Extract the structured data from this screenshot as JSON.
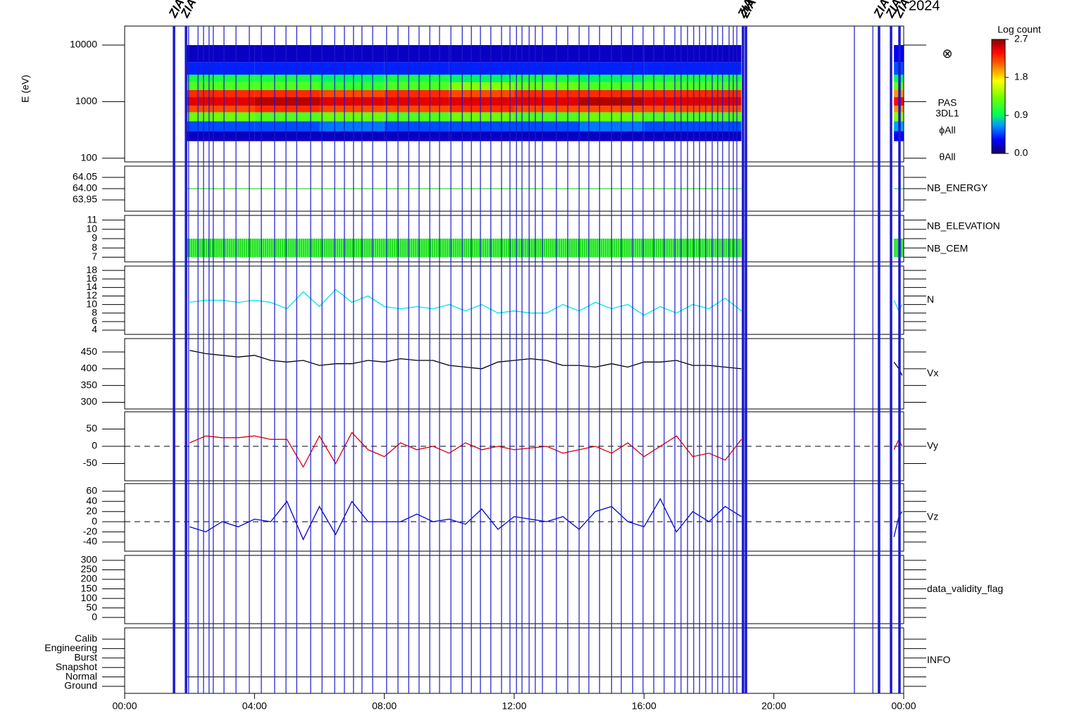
{
  "date": "2024",
  "markers": {
    "label": "ZIAC",
    "thick": [
      1.52,
      1.89,
      19.05,
      19.14,
      23.24,
      23.61,
      23.87
    ],
    "thin": [
      1.97,
      2.26,
      2.43,
      2.6,
      2.73,
      3.06,
      3.43,
      3.84,
      4.21,
      4.62,
      4.97,
      5.3,
      5.73,
      6.08,
      6.47,
      6.77,
      7.05,
      7.31,
      7.64,
      8.07,
      8.42,
      8.75,
      9.07,
      9.4,
      9.7,
      10.05,
      10.4,
      10.68,
      10.96,
      11.28,
      11.61,
      11.87,
      12.07,
      12.24,
      12.46,
      12.65,
      12.87,
      13.3,
      13.65,
      14.0,
      14.3,
      14.63,
      15.0,
      15.3,
      15.65,
      15.97,
      16.3,
      16.62,
      16.95,
      17.14,
      17.34,
      17.53,
      17.71,
      17.9,
      18.1,
      18.27,
      18.42,
      18.62,
      18.75,
      18.86,
      22.48,
      23.05
    ]
  },
  "chart_data": [
    {
      "type": "spectrogram",
      "y_label": "E (eV)",
      "log": true,
      "ylim": [
        86,
        21700
      ],
      "yticks": [
        10000,
        1000,
        100
      ],
      "symbol": "⊗",
      "right_labels": [
        {
          "text": "PAS",
          "color": "#000000"
        },
        {
          "text": "3DL1",
          "color": "#000000"
        },
        {
          "text": "ϕAll",
          "color": "#000000"
        },
        {
          "text": "θAll",
          "color": "#000000"
        }
      ],
      "energy_edges": [
        200,
        300,
        450,
        650,
        850,
        1200,
        1600,
        2200,
        3000,
        5000,
        10000
      ],
      "colorbar": {
        "label": "Log count",
        "lim": [
          0,
          2.7
        ],
        "ticks": [
          {
            "value": 0,
            "label": "0.0"
          },
          {
            "value": 0.9,
            "label": "0.9"
          },
          {
            "value": 1.8,
            "label": "1.8"
          },
          {
            "value": 2.7,
            "label": "2.7"
          }
        ]
      },
      "blocks": [
        {
          "t0": 1.9,
          "t1": 4,
          "values": [
            0.2,
            0.5,
            1.3,
            2.2,
            2.5,
            2.3,
            1.2,
            1.0,
            0.4,
            0.2
          ]
        },
        {
          "t0": 4,
          "t1": 6,
          "values": [
            0.2,
            0.5,
            1.2,
            2.3,
            2.6,
            2.3,
            1.2,
            1.0,
            0.4,
            0.2
          ]
        },
        {
          "t0": 6,
          "t1": 8,
          "values": [
            0.2,
            0.6,
            1.3,
            2.2,
            2.5,
            2.2,
            1.1,
            0.9,
            0.4,
            0.2
          ]
        },
        {
          "t0": 8,
          "t1": 10,
          "values": [
            0.2,
            0.5,
            1.2,
            2.2,
            2.5,
            2.3,
            1.2,
            1.0,
            0.4,
            0.2
          ]
        },
        {
          "t0": 10,
          "t1": 12,
          "values": [
            0.2,
            0.5,
            1.3,
            2.3,
            2.5,
            2.2,
            1.4,
            0.9,
            0.4,
            0.2
          ]
        },
        {
          "t0": 12,
          "t1": 14,
          "values": [
            0.2,
            0.5,
            1.2,
            2.2,
            2.5,
            2.3,
            1.3,
            1.0,
            0.4,
            0.2
          ]
        },
        {
          "t0": 14,
          "t1": 16,
          "values": [
            0.2,
            0.6,
            1.3,
            2.2,
            2.6,
            2.3,
            1.2,
            0.9,
            0.4,
            0.2
          ]
        },
        {
          "t0": 16,
          "t1": 19.0,
          "values": [
            0.2,
            0.5,
            1.2,
            2.2,
            2.5,
            2.3,
            1.2,
            1.0,
            0.4,
            0.2
          ]
        },
        {
          "t0": 23.7,
          "t1": 24,
          "values": [
            0.3,
            0.7,
            1.4,
            2.0,
            2.4,
            2.0,
            1.3,
            0.9,
            0.5,
            0.3
          ]
        }
      ]
    },
    {
      "type": "level",
      "ylim": [
        63.9,
        64.1
      ],
      "yticks": [
        {
          "value": 64.05,
          "label": "64.05"
        },
        {
          "value": 64.0,
          "label": "64.00"
        },
        {
          "value": 63.95,
          "label": "63.95"
        }
      ],
      "right_labels": [
        {
          "text": "NB_ENERGY",
          "color": "#00cc00"
        }
      ],
      "color": "#00cc00",
      "value": 64.0,
      "segments": [
        [
          1.9,
          19.0
        ],
        [
          23.7,
          24
        ]
      ]
    },
    {
      "type": "band",
      "ylim": [
        6.5,
        11.5
      ],
      "yticks": [
        11,
        10,
        9,
        8,
        7
      ],
      "right_labels": [
        {
          "text": "NB_ELEVATION",
          "color": "#00cc00"
        },
        {
          "text": "NB_CEM",
          "color": "#0000cc"
        }
      ],
      "color": "#22dd22",
      "range": [
        7,
        9
      ],
      "segments": [
        [
          1.9,
          19.0
        ],
        [
          23.7,
          24
        ]
      ]
    },
    {
      "type": "line",
      "ylim": [
        3,
        19
      ],
      "yticks": [
        18,
        16,
        14,
        12,
        10,
        8,
        6,
        4
      ],
      "right_labels": [
        {
          "text": "N",
          "color": "#00e5ee"
        }
      ],
      "x": [
        2,
        2.5,
        3,
        3.5,
        4,
        4.5,
        5,
        5.5,
        6,
        6.5,
        7,
        7.5,
        8,
        8.5,
        9,
        9.5,
        10,
        10.5,
        11,
        11.5,
        12,
        12.5,
        13,
        13.5,
        14,
        14.5,
        15,
        15.5,
        16,
        16.5,
        17,
        17.5,
        18,
        18.5,
        19,
        21,
        23.7,
        23.85,
        23.95
      ],
      "series": [
        {
          "name": "N",
          "color": "#00e5ee",
          "values": [
            10.5,
            11,
            11,
            10.5,
            11,
            10.5,
            9,
            13,
            9.5,
            13.5,
            10.5,
            12,
            9.5,
            9,
            9.5,
            9,
            10,
            8.5,
            10,
            8,
            8.5,
            8,
            8,
            10,
            8.5,
            10.5,
            9,
            10,
            7.5,
            9.5,
            8,
            10,
            9,
            11.5,
            8.5,
            null,
            11,
            8.5,
            10
          ]
        }
      ]
    },
    {
      "type": "line",
      "ylim": [
        280,
        490
      ],
      "yticks": [
        450,
        400,
        350,
        300
      ],
      "right_labels": [
        {
          "text": "Vx",
          "color": "#000000"
        }
      ],
      "x": [
        2,
        2.5,
        3,
        3.5,
        4,
        4.5,
        5,
        5.5,
        6,
        6.5,
        7,
        7.5,
        8,
        8.5,
        9,
        9.5,
        10,
        10.5,
        11,
        11.5,
        12,
        12.5,
        13,
        13.5,
        14,
        14.5,
        15,
        15.5,
        16,
        16.5,
        17,
        17.5,
        18,
        18.5,
        19,
        21,
        23.7,
        23.85,
        23.95
      ],
      "series": [
        {
          "name": "Vx",
          "color": "#000000",
          "values": [
            455,
            445,
            440,
            435,
            440,
            425,
            420,
            425,
            410,
            415,
            415,
            425,
            420,
            430,
            425,
            425,
            410,
            405,
            400,
            420,
            425,
            430,
            425,
            410,
            410,
            405,
            415,
            405,
            420,
            420,
            425,
            410,
            410,
            405,
            400,
            null,
            420,
            400,
            380
          ]
        }
      ]
    },
    {
      "type": "line",
      "zero_line": true,
      "ylim": [
        -100,
        100
      ],
      "yticks": [
        50,
        0,
        -50
      ],
      "right_labels": [
        {
          "text": "Vy",
          "color": "#e00000"
        }
      ],
      "x": [
        2,
        2.5,
        3,
        3.5,
        4,
        4.5,
        5,
        5.5,
        6,
        6.5,
        7,
        7.5,
        8,
        8.5,
        9,
        9.5,
        10,
        10.5,
        11,
        11.5,
        12,
        12.5,
        13,
        13.5,
        14,
        14.5,
        15,
        15.5,
        16,
        16.5,
        17,
        17.5,
        18,
        18.5,
        19,
        21,
        23.7,
        23.85,
        23.95
      ],
      "series": [
        {
          "name": "Vy",
          "color": "#e00000",
          "values": [
            10,
            30,
            25,
            25,
            30,
            20,
            20,
            -60,
            30,
            -50,
            40,
            -10,
            -30,
            10,
            -10,
            0,
            -20,
            10,
            -10,
            0,
            -10,
            -5,
            0,
            -20,
            -10,
            0,
            -20,
            10,
            -30,
            0,
            30,
            -30,
            -20,
            -40,
            20,
            null,
            -10,
            20,
            0
          ]
        }
      ]
    },
    {
      "type": "line",
      "zero_line": true,
      "ylim": [
        -58,
        75
      ],
      "yticks": [
        60,
        40,
        20,
        0,
        -20,
        -40
      ],
      "right_labels": [
        {
          "text": "Vz",
          "color": "#0000d0"
        }
      ],
      "x": [
        2,
        2.5,
        3,
        3.5,
        4,
        4.5,
        5,
        5.5,
        6,
        6.5,
        7,
        7.5,
        8,
        8.5,
        9,
        9.5,
        10,
        10.5,
        11,
        11.5,
        12,
        12.5,
        13,
        13.5,
        14,
        14.5,
        15,
        15.5,
        16,
        16.5,
        17,
        17.5,
        18,
        18.5,
        19,
        21,
        23.7,
        23.85,
        23.95
      ],
      "series": [
        {
          "name": "Vz",
          "color": "#0000d0",
          "values": [
            -10,
            -20,
            0,
            -10,
            5,
            0,
            40,
            -35,
            30,
            -25,
            40,
            0,
            0,
            0,
            15,
            0,
            5,
            -5,
            25,
            -15,
            10,
            5,
            0,
            10,
            -15,
            20,
            30,
            0,
            -10,
            45,
            -20,
            20,
            0,
            30,
            10,
            null,
            -30,
            10,
            20
          ]
        }
      ]
    },
    {
      "type": "empty",
      "ylim": [
        -33,
        326
      ],
      "yticks": [
        300,
        250,
        200,
        150,
        100,
        50,
        0
      ],
      "right_labels": [
        {
          "text": "data_validity_flag",
          "color": "#000000"
        }
      ]
    },
    {
      "type": "state",
      "categories": [
        "Calib",
        "Engineering",
        "Burst",
        "Snapshot",
        "Normal",
        "Ground"
      ],
      "right_labels": [
        {
          "text": "INFO",
          "color": "#000000"
        }
      ],
      "color": "#000000",
      "state_segments": [
        {
          "start": 1.9,
          "end": 19.0,
          "state": 4
        }
      ],
      "xlim": [
        0,
        24
      ],
      "xticks": [
        {
          "value": 0,
          "label": "00:00"
        },
        {
          "value": 4,
          "label": "04:00"
        },
        {
          "value": 8,
          "label": "08:00"
        },
        {
          "value": 12,
          "label": "12:00"
        },
        {
          "value": 16,
          "label": "16:00"
        },
        {
          "value": 20,
          "label": "20:00"
        },
        {
          "value": 24,
          "label": "00:00"
        }
      ]
    }
  ]
}
